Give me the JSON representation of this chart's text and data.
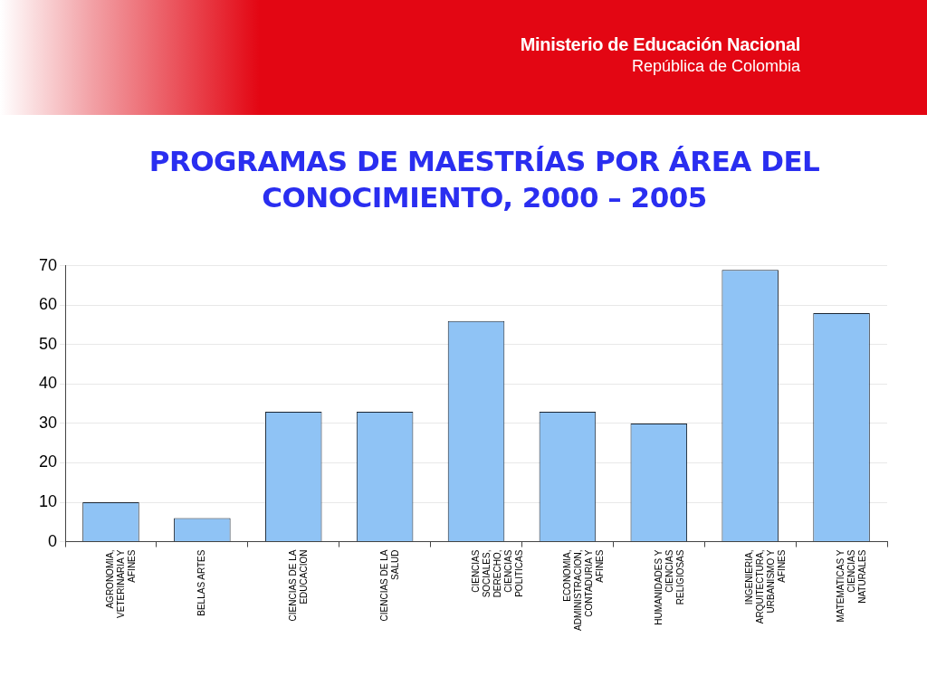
{
  "chart_data": {
    "type": "bar",
    "title": "PROGRAMAS DE MAESTRÍAS POR ÁREA DEL CONOCIMIENTO, 2000 – 2005",
    "annotations": [
      "Ministerio de Educación Nacional",
      "República de Colombia"
    ],
    "categories": [
      "AGRONOMIA, VETERINARIA Y AFINES",
      "BELLAS ARTES",
      "CIENCIAS DE LA EDUCACION",
      "CIENCIAS DE LA SALUD",
      "CIENCIAS SOCIALES, DERECHO, CIENCIAS POLITICAS",
      "ECONOMIA, ADMINISTRACION, CONTADURIA Y AFINES",
      "HUMANIDADES Y CIENCIAS RELIGIOSAS",
      "INGENIERIA, ARQUITECTURA, URBANISMO Y AFINES",
      "MATEMATICAS Y CIENCIAS NATURALES"
    ],
    "values": [
      10,
      6,
      33,
      33,
      56,
      33,
      30,
      69,
      58
    ],
    "color": "#8fc3f5",
    "ylim": [
      0,
      70
    ],
    "yticks": [
      0,
      10,
      20,
      30,
      40,
      50,
      60,
      70
    ],
    "grid": "y"
  }
}
